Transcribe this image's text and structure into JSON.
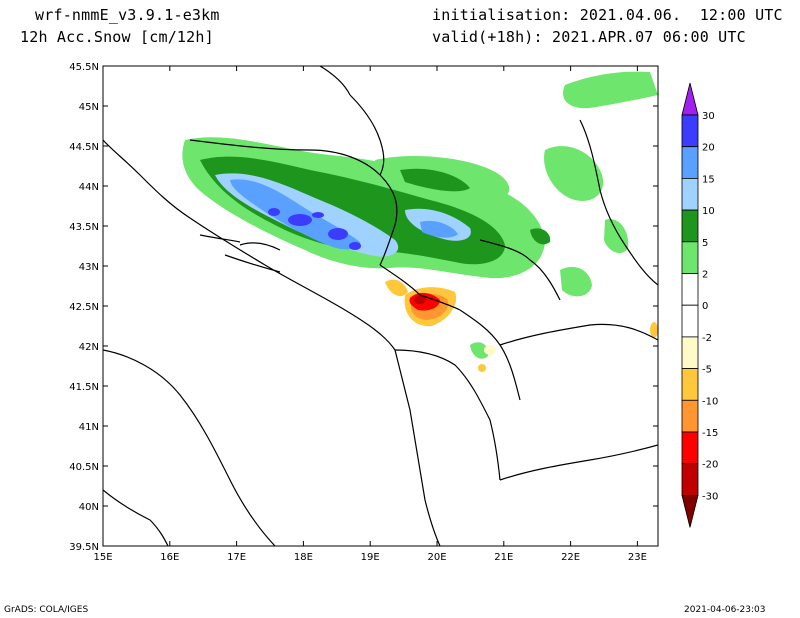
{
  "header": {
    "model": "wrf-nmmE_v3.9.1-e3km",
    "field": "12h Acc.Snow [cm/12h]",
    "init": "initialisation: 2021.04.06.  12:00 UTC",
    "valid": "valid(+18h): 2021.APR.07 06:00 UTC"
  },
  "map": {
    "lon_labels": [
      "15E",
      "16E",
      "17E",
      "18E",
      "19E",
      "20E",
      "21E",
      "22E",
      "23E"
    ],
    "lat_labels": [
      "45.5N",
      "45N",
      "44.5N",
      "44N",
      "43.5N",
      "43N",
      "42.5N",
      "42N",
      "41.5N",
      "41N",
      "40.5N",
      "40N",
      "39.5N"
    ]
  },
  "colorbar": {
    "labels": [
      "30",
      "20",
      "15",
      "10",
      "5",
      "2",
      "0",
      "-2",
      "-5",
      "-10",
      "-15",
      "-20",
      "-30"
    ],
    "colors": {
      "top_arrow": "#a020f0",
      "c25": "#3c3cff",
      "c17": "#5aa0ff",
      "c12": "#a0d2ff",
      "c7": "#1e961e",
      "c3": "#6ee66e",
      "c1": "#ffffff",
      "cm1": "#ffffff",
      "cm3": "#fffac8",
      "cm7": "#ffc83c",
      "cm12": "#ff9632",
      "cm17": "#ff0000",
      "cm25": "#c00000",
      "bottom_arrow": "#800000"
    }
  },
  "footer": {
    "left": "GrADS: COLA/IGES",
    "right": "2021-04-06-23:03"
  }
}
